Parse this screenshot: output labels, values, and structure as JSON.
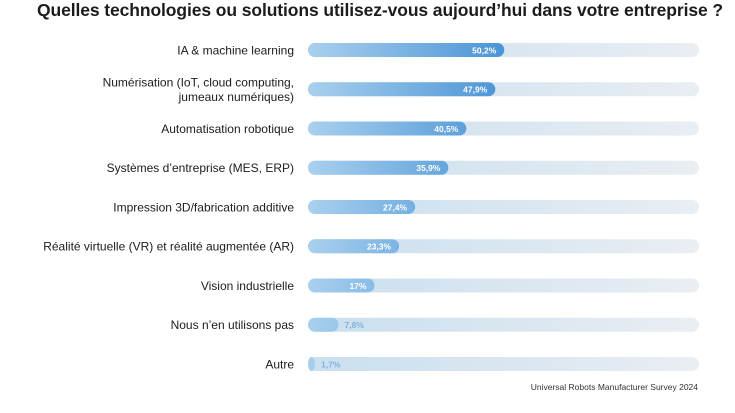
{
  "chart_data": {
    "type": "bar",
    "orientation": "horizontal",
    "title": "Quelles technologies ou solutions utilisez-vous aujourd’hui dans votre entreprise ?",
    "categories": [
      [
        "IA & machine learning"
      ],
      [
        "Numérisation (IoT, cloud computing,",
        "jumeaux numériques)"
      ],
      [
        "Automatisation robotique"
      ],
      [
        "Systèmes d’entreprise (MES, ERP)"
      ],
      [
        "Impression 3D/fabrication additive"
      ],
      [
        "Réalité virtuelle (VR) et réalité augmentée (AR)"
      ],
      [
        "Vision industrielle"
      ],
      [
        "Nous n’en utilisons pas"
      ],
      [
        "Autre"
      ]
    ],
    "values": [
      50.2,
      47.9,
      40.5,
      35.9,
      27.4,
      23.3,
      17,
      7.8,
      1.7
    ],
    "value_labels": [
      "50,2%",
      "47,9%",
      "40,5%",
      "35,9%",
      "27,4%",
      "23,3%",
      "17%",
      "7,8%",
      "1,7%"
    ],
    "xlim": [
      0,
      100
    ],
    "xlabel": "",
    "ylabel": "",
    "grid": false,
    "colors": {
      "bar_start": "#a9d0ee",
      "bar_end": "#4a94d6",
      "track_start": "#c9dfef",
      "track_end": "#e9eef2",
      "label_outside": "#7fb2dc",
      "text": "#1c1c1c"
    }
  },
  "source": "Universal Robots Manufacturer Survey 2024"
}
